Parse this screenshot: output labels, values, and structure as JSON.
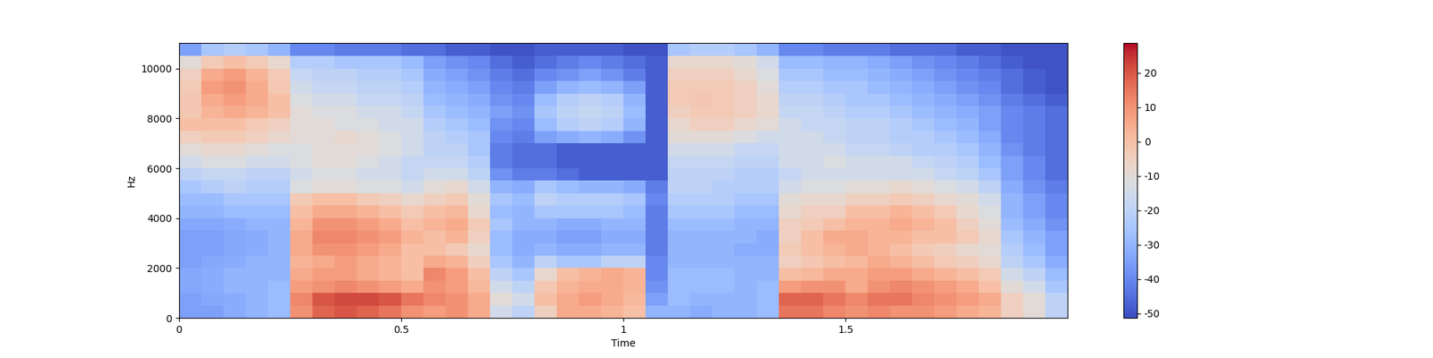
{
  "chart_data": {
    "type": "heatmap",
    "x_label": "Time",
    "y_label": "Hz",
    "color": "coolwarm",
    "xlim": [
      0,
      2
    ],
    "ylim": [
      0,
      11025
    ],
    "xticks": [
      0,
      0.5,
      1,
      1.5
    ],
    "yticks": [
      0,
      2000,
      4000,
      6000,
      8000,
      10000
    ],
    "time_edges": [
      0,
      0.05,
      0.1,
      0.15,
      0.2,
      0.25,
      0.3,
      0.35,
      0.4,
      0.45,
      0.5,
      0.55,
      0.6,
      0.65,
      0.7,
      0.75,
      0.8,
      0.85,
      0.9,
      0.95,
      1,
      1.05,
      1.1,
      1.15,
      1.2,
      1.25,
      1.3,
      1.35,
      1.4,
      1.45,
      1.5,
      1.55,
      1.6,
      1.65,
      1.7,
      1.75,
      1.8,
      1.85,
      1.9,
      1.95,
      2
    ],
    "freq_edges": [
      0,
      500,
      1000,
      1500,
      2000,
      2500,
      3000,
      3500,
      4000,
      4500,
      5000,
      5500,
      6000,
      6500,
      7000,
      7500,
      8000,
      8500,
      9000,
      9500,
      10000,
      10500,
      11025
    ],
    "cells": [
      [
        -35,
        -35,
        -32,
        -30,
        -28,
        10,
        18,
        20,
        18,
        15,
        10,
        8,
        10,
        5,
        -15,
        -20,
        -5,
        5,
        5,
        3,
        0,
        -30,
        -30,
        -32,
        -30,
        -30,
        -28,
        15,
        15,
        12,
        10,
        12,
        10,
        10,
        8,
        5,
        3,
        -5,
        -10,
        -20
      ],
      [
        -35,
        -33,
        -32,
        -30,
        -28,
        12,
        20,
        22,
        22,
        20,
        15,
        12,
        10,
        5,
        -10,
        -15,
        0,
        5,
        8,
        5,
        2,
        -35,
        -28,
        -30,
        -30,
        -30,
        -28,
        18,
        18,
        15,
        12,
        15,
        15,
        12,
        10,
        8,
        5,
        -5,
        -10,
        -20
      ],
      [
        -33,
        -32,
        -30,
        -30,
        -28,
        8,
        10,
        12,
        10,
        8,
        5,
        10,
        8,
        2,
        -15,
        -20,
        -2,
        3,
        5,
        5,
        3,
        -38,
        -28,
        -28,
        -28,
        -30,
        -28,
        8,
        10,
        10,
        5,
        10,
        12,
        10,
        8,
        5,
        0,
        -10,
        -15,
        -25
      ],
      [
        -33,
        -32,
        -30,
        -30,
        -30,
        5,
        8,
        8,
        5,
        3,
        0,
        12,
        8,
        0,
        -20,
        -25,
        -8,
        0,
        3,
        5,
        3,
        -40,
        -28,
        -28,
        -28,
        -30,
        -30,
        0,
        2,
        5,
        5,
        8,
        8,
        5,
        3,
        0,
        -3,
        -15,
        -20,
        -28
      ],
      [
        -35,
        -33,
        -32,
        -30,
        -30,
        3,
        5,
        8,
        5,
        3,
        0,
        5,
        3,
        -5,
        -25,
        -30,
        -20,
        -25,
        -25,
        -20,
        -20,
        -40,
        -30,
        -30,
        -30,
        -30,
        -30,
        -5,
        -2,
        0,
        2,
        5,
        3,
        0,
        -3,
        -5,
        -8,
        -20,
        -25,
        -32
      ],
      [
        -35,
        -35,
        -33,
        -32,
        -30,
        5,
        10,
        10,
        8,
        5,
        0,
        0,
        -3,
        -8,
        -28,
        -32,
        -30,
        -32,
        -32,
        -30,
        -30,
        -42,
        -30,
        -30,
        -30,
        -32,
        -32,
        -3,
        0,
        3,
        5,
        3,
        0,
        -3,
        -5,
        -8,
        -10,
        -22,
        -28,
        -35
      ],
      [
        -35,
        -35,
        -33,
        -32,
        -30,
        5,
        12,
        12,
        10,
        8,
        3,
        0,
        3,
        -5,
        -28,
        -32,
        -32,
        -35,
        -35,
        -32,
        -32,
        -42,
        -30,
        -30,
        -30,
        -30,
        -32,
        -5,
        0,
        5,
        5,
        3,
        3,
        0,
        0,
        -3,
        -8,
        -25,
        -30,
        -35
      ],
      [
        -33,
        -33,
        -32,
        -30,
        -30,
        3,
        10,
        10,
        8,
        5,
        0,
        3,
        5,
        -3,
        -25,
        -30,
        -30,
        -32,
        -32,
        -30,
        -30,
        -42,
        -28,
        -28,
        -28,
        -30,
        -30,
        -5,
        -3,
        0,
        3,
        3,
        5,
        3,
        0,
        -5,
        -10,
        -28,
        -32,
        -38
      ],
      [
        -30,
        -30,
        -28,
        -28,
        -28,
        0,
        5,
        5,
        3,
        0,
        -3,
        0,
        2,
        -8,
        -28,
        -30,
        -25,
        -25,
        -25,
        -25,
        -28,
        -42,
        -25,
        -25,
        -25,
        -28,
        -28,
        -8,
        -5,
        -5,
        0,
        0,
        3,
        0,
        -3,
        -8,
        -12,
        -30,
        -35,
        -40
      ],
      [
        -28,
        -28,
        -25,
        -25,
        -25,
        -3,
        0,
        0,
        -3,
        -5,
        -8,
        -5,
        -3,
        -10,
        -25,
        -28,
        -20,
        -22,
        -22,
        -22,
        -25,
        -40,
        -22,
        -22,
        -22,
        -25,
        -25,
        -10,
        -8,
        -8,
        -5,
        -5,
        -3,
        -5,
        -8,
        -10,
        -15,
        -30,
        -35,
        -40
      ],
      [
        -25,
        -22,
        -20,
        -22,
        -22,
        -12,
        -10,
        -10,
        -12,
        -12,
        -15,
        -10,
        -8,
        -15,
        -30,
        -32,
        -25,
        -28,
        -30,
        -30,
        -32,
        -42,
        -20,
        -20,
        -22,
        -22,
        -22,
        -15,
        -12,
        -12,
        -10,
        -10,
        -8,
        -10,
        -12,
        -15,
        -20,
        -32,
        -38,
        -42
      ],
      [
        -20,
        -18,
        -18,
        -20,
        -20,
        -15,
        -12,
        -12,
        -15,
        -15,
        -18,
        -15,
        -15,
        -20,
        -38,
        -42,
        -42,
        -45,
        -48,
        -48,
        -48,
        -48,
        -20,
        -20,
        -20,
        -22,
        -22,
        -18,
        -15,
        -15,
        -15,
        -15,
        -15,
        -15,
        -18,
        -20,
        -25,
        -35,
        -40,
        -45
      ],
      [
        -15,
        -12,
        -12,
        -15,
        -15,
        -12,
        -10,
        -10,
        -12,
        -15,
        -18,
        -18,
        -18,
        -22,
        -42,
        -45,
        -45,
        -48,
        -48,
        -48,
        -48,
        -48,
        -18,
        -18,
        -18,
        -20,
        -20,
        -15,
        -15,
        -12,
        -15,
        -15,
        -15,
        -18,
        -20,
        -22,
        -28,
        -35,
        -40,
        -45
      ],
      [
        -10,
        -8,
        -8,
        -10,
        -12,
        -12,
        -10,
        -10,
        -10,
        -12,
        -15,
        -20,
        -20,
        -25,
        -42,
        -45,
        -45,
        -48,
        -48,
        -48,
        -48,
        -48,
        -15,
        -15,
        -15,
        -18,
        -18,
        -15,
        -15,
        -15,
        -18,
        -18,
        -20,
        -22,
        -22,
        -25,
        -30,
        -38,
        -42,
        -45
      ],
      [
        -5,
        -3,
        -3,
        -5,
        -8,
        -10,
        -10,
        -8,
        -10,
        -12,
        -15,
        -20,
        -22,
        -25,
        -40,
        -42,
        -35,
        -32,
        -30,
        -32,
        -38,
        -48,
        -10,
        -10,
        -10,
        -12,
        -15,
        -15,
        -15,
        -18,
        -20,
        -20,
        -22,
        -22,
        -25,
        -28,
        -32,
        -40,
        -42,
        -45
      ],
      [
        0,
        0,
        0,
        -3,
        -5,
        -10,
        -10,
        -12,
        -12,
        -15,
        -15,
        -22,
        -25,
        -28,
        -38,
        -40,
        -28,
        -22,
        -20,
        -22,
        -30,
        -48,
        -8,
        -5,
        -5,
        -8,
        -10,
        -15,
        -18,
        -18,
        -20,
        -20,
        -22,
        -25,
        -28,
        -30,
        -35,
        -40,
        -42,
        -45
      ],
      [
        -2,
        3,
        5,
        3,
        0,
        -10,
        -12,
        -12,
        -15,
        -15,
        -18,
        -25,
        -28,
        -30,
        -35,
        -38,
        -25,
        -20,
        -18,
        -20,
        -28,
        -48,
        -5,
        -3,
        -3,
        -5,
        -8,
        -18,
        -18,
        -20,
        -22,
        -22,
        -25,
        -28,
        -30,
        -32,
        -35,
        -40,
        -42,
        -45
      ],
      [
        -2,
        5,
        8,
        5,
        0,
        -12,
        -15,
        -15,
        -18,
        -18,
        -20,
        -28,
        -30,
        -32,
        -38,
        -40,
        -28,
        -22,
        -20,
        -22,
        -30,
        -48,
        -3,
        -2,
        -3,
        -5,
        -8,
        -20,
        -20,
        -22,
        -25,
        -25,
        -28,
        -30,
        -32,
        -35,
        -38,
        -42,
        -45,
        -48
      ],
      [
        -3,
        8,
        10,
        5,
        -2,
        -15,
        -18,
        -18,
        -20,
        -20,
        -22,
        -30,
        -32,
        -35,
        -40,
        -42,
        -35,
        -30,
        -28,
        -30,
        -35,
        -48,
        -3,
        -3,
        -3,
        -5,
        -10,
        -22,
        -22,
        -25,
        -25,
        -28,
        -30,
        -32,
        -35,
        -38,
        -40,
        -45,
        -48,
        -50
      ],
      [
        -5,
        5,
        8,
        3,
        -3,
        -18,
        -20,
        -20,
        -22,
        -22,
        -25,
        -32,
        -35,
        -38,
        -42,
        -45,
        -40,
        -38,
        -35,
        -38,
        -42,
        -48,
        -5,
        -5,
        -5,
        -8,
        -12,
        -25,
        -25,
        -28,
        -28,
        -30,
        -32,
        -35,
        -38,
        -40,
        -42,
        -45,
        -48,
        -50
      ],
      [
        -10,
        -3,
        0,
        -3,
        -8,
        -22,
        -22,
        -25,
        -25,
        -25,
        -28,
        -35,
        -38,
        -40,
        -45,
        -48,
        -45,
        -42,
        -40,
        -42,
        -45,
        -48,
        -8,
        -8,
        -8,
        -10,
        -15,
        -28,
        -28,
        -30,
        -30,
        -32,
        -35,
        -38,
        -40,
        -42,
        -45,
        -48,
        -50,
        -50
      ],
      [
        -35,
        -25,
        -22,
        -25,
        -30,
        -40,
        -40,
        -42,
        -42,
        -42,
        -45,
        -45,
        -48,
        -48,
        -50,
        -50,
        -48,
        -48,
        -48,
        -48,
        -50,
        -50,
        -25,
        -22,
        -22,
        -25,
        -30,
        -40,
        -40,
        -42,
        -42,
        -42,
        -45,
        -45,
        -45,
        -48,
        -48,
        -50,
        -50,
        -50
      ]
    ],
    "colorbar": {
      "range": [
        -51.3,
        28.7
      ],
      "ticks": [
        -50,
        -40,
        -30,
        -20,
        -10,
        0,
        10,
        20
      ]
    }
  }
}
